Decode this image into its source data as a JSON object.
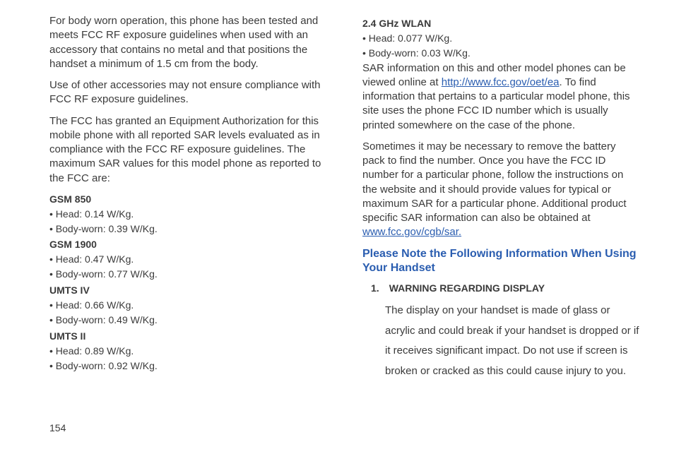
{
  "col1": {
    "p1": "For body worn operation, this phone has been tested and meets FCC RF exposure guidelines when used with an accessory that contains no metal and that positions the handset a minimum of 1.5 cm from the body.",
    "p2": "Use of other accessories may not ensure compliance with FCC RF exposure guidelines.",
    "p3": "The FCC has granted an Equipment Authorization for this mobile phone with all reported SAR levels evaluated as in compliance with the FCC RF exposure guidelines. The maximum SAR values for this model phone as reported to the FCC are:",
    "h1": "GSM 850",
    "h1b1": "• Head: 0.14 W/Kg.",
    "h1b2": "• Body-worn: 0.39 W/Kg.",
    "h2": "GSM 1900",
    "h2b1": "• Head: 0.47 W/Kg.",
    "h2b2": "• Body-worn: 0.77 W/Kg.",
    "h3": "UMTS IV",
    "h3b1": "• Head: 0.66 W/Kg.",
    "h3b2": "• Body-worn: 0.49 W/Kg.",
    "h4": "UMTS II",
    "h4b1": "• Head: 0.89 W/Kg.",
    "h4b2": "• Body-worn: 0.92 W/Kg."
  },
  "col2": {
    "h5": "2.4 GHz WLAN",
    "h5b1": "• Head: 0.077 W/Kg.",
    "h5b2": "• Body-worn: 0.03 W/Kg.",
    "p4a": "SAR information on this and other model phones can be viewed online at  ",
    "link1": "http://www.fcc.gov/oet/ea",
    "p4b": ". To find information that pertains to a particular model phone, this site uses the phone FCC ID number which is usually printed somewhere on the case of the phone.",
    "p5a": "Sometimes it may be necessary to remove the battery pack to find the number. Once you have the FCC ID number for a particular phone, follow the instructions on the website and it should provide values for typical or maximum SAR for a particular phone. Additional product specific SAR information can also be obtained at  ",
    "link2": "www.fcc.gov/cgb/sar.",
    "heading": "Please Note the Following Information When Using Your Handset",
    "item1_num": "1.",
    "item1_title": "WARNING REGARDING DISPLAY",
    "item1_body": "The display on your handset is made of glass or acrylic and could break if your handset is dropped or if it receives significant impact. Do not use if screen is broken or cracked as this could cause injury to you."
  },
  "page_number": "154"
}
